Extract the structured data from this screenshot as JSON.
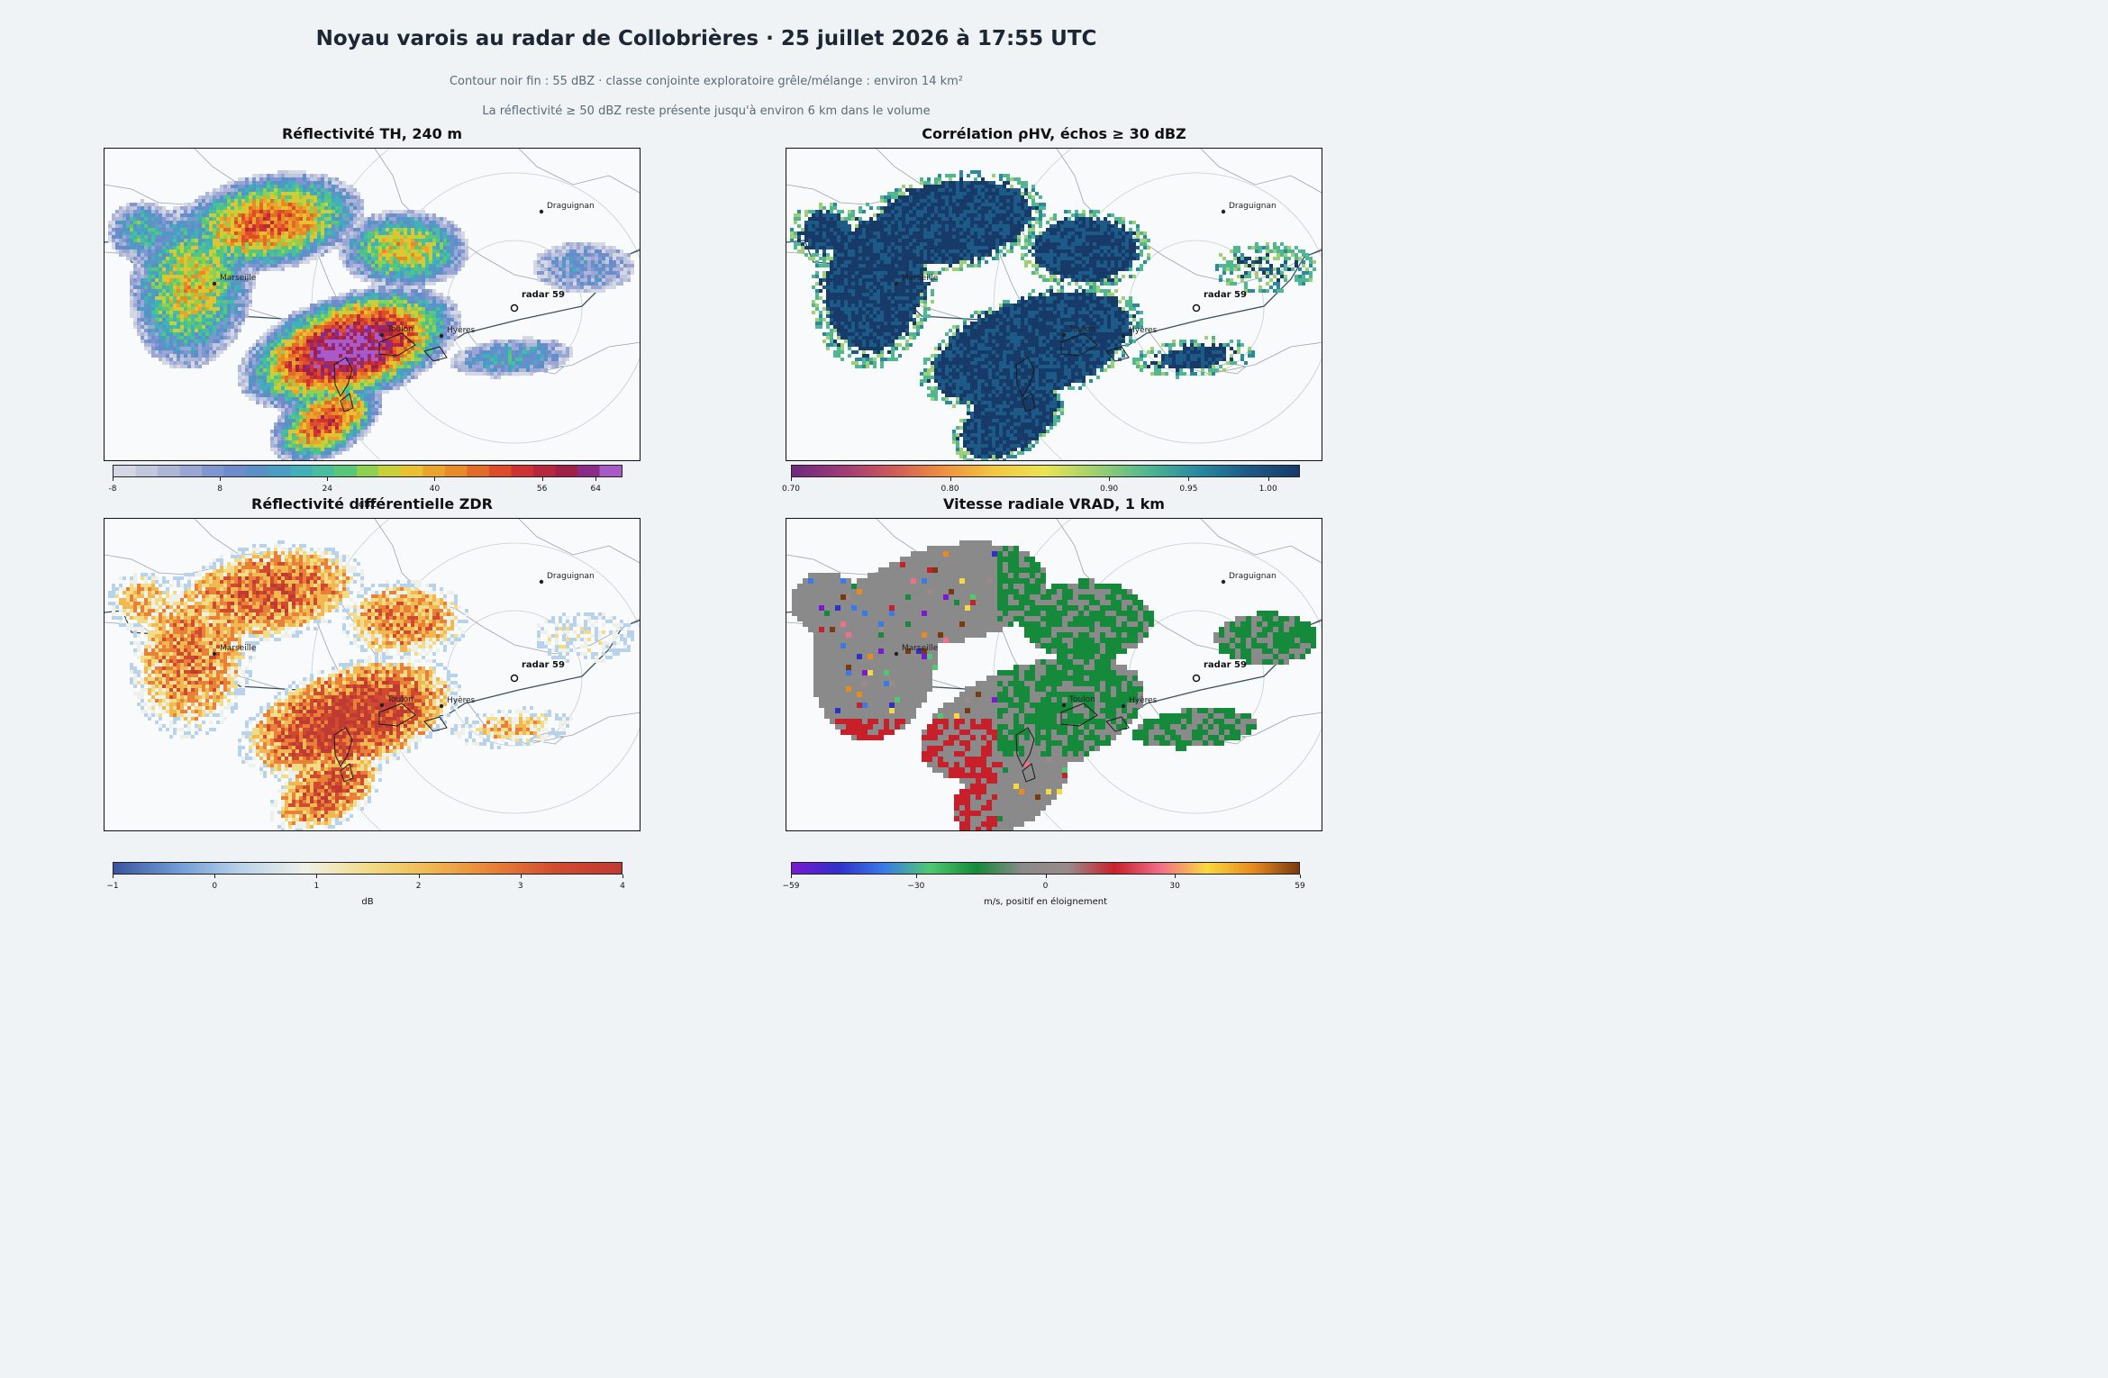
{
  "header": {
    "title": "Noyau varois au radar de Collobrières · 25 juillet 2026 à 17:55 UTC",
    "subtitle1": "Contour noir fin : 55 dBZ · classe conjointe exploratoire grêle/mélange : environ 14 km²",
    "subtitle2": "La réflectivité ≥ 50 dBZ reste présente jusqu'à environ 6 km dans le volume"
  },
  "map_labels": {
    "draguignan": "Draguignan",
    "marseille": "Marseille",
    "toulon": "Toulon",
    "hyeres": "Hyères",
    "radar": "radar 59"
  },
  "panels": [
    {
      "title": "Réflectivité TH, 240 m",
      "field": "reflectivity",
      "colorbar": {
        "min": -8,
        "max": 68,
        "ticks": [
          "-8",
          "8",
          "24",
          "40",
          "56",
          "64"
        ],
        "tick_values": [
          -8,
          8,
          24,
          40,
          56,
          64
        ],
        "label": "dBZ",
        "colors": [
          "#d4d8e4",
          "#c1c7dc",
          "#aeb6d8",
          "#9aa6d4",
          "#8096d0",
          "#6c8ccc",
          "#5890c8",
          "#4a9ec4",
          "#41b0b8",
          "#47bea0",
          "#58c878",
          "#8ed050",
          "#c8d038",
          "#e8c030",
          "#eaa42c",
          "#e88a28",
          "#e46a28",
          "#de4c2a",
          "#d03232",
          "#b8283c",
          "#a02048",
          "#8c2a88",
          "#aa5ac8"
        ]
      }
    },
    {
      "title": "Corrélation ρHV, échos ≥ 30 dBZ",
      "field": "rhohv",
      "colorbar": {
        "min": 0.7,
        "max": 1.02,
        "ticks": [
          "0.70",
          "0.80",
          "0.90",
          "0.95",
          "1.00"
        ],
        "tick_values": [
          0.7,
          0.8,
          0.9,
          0.95,
          1.0
        ],
        "label": "",
        "colors": [
          "#6e2a80",
          "#a03a78",
          "#d05a58",
          "#f09040",
          "#f2c840",
          "#ece450",
          "#9cd070",
          "#50b890",
          "#2a8aa0",
          "#1c5a88",
          "#173a68"
        ]
      }
    },
    {
      "title": "Réflectivité différentielle ZDR",
      "field": "zdr",
      "colorbar": {
        "min": -1,
        "max": 4,
        "ticks": [
          "−1",
          "0",
          "1",
          "2",
          "3",
          "4"
        ],
        "tick_values": [
          -1,
          0,
          1,
          2,
          3,
          4
        ],
        "label": "dB",
        "colors": [
          "#3b55a0",
          "#6f9ad4",
          "#b8d2ea",
          "#eef0ea",
          "#f2dc88",
          "#f0b850",
          "#e88038",
          "#d04a30",
          "#c03a34"
        ]
      }
    },
    {
      "title": "Vitesse radiale VRAD, 1 km",
      "field": "vrad",
      "colorbar": {
        "min": -59,
        "max": 59,
        "ticks": [
          "−59",
          "−30",
          "0",
          "30",
          "59"
        ],
        "tick_values": [
          -59,
          -30,
          0,
          30,
          59
        ],
        "label": "m/s, positif en éloignement",
        "colors": [
          "#7a1ad0",
          "#3030c8",
          "#3a7ae8",
          "#50c870",
          "#158a3a",
          "#8a8a8a",
          "#9a8a8a",
          "#c8202a",
          "#f07088",
          "#f8d840",
          "#e88a20",
          "#7a3a10"
        ]
      }
    }
  ]
}
